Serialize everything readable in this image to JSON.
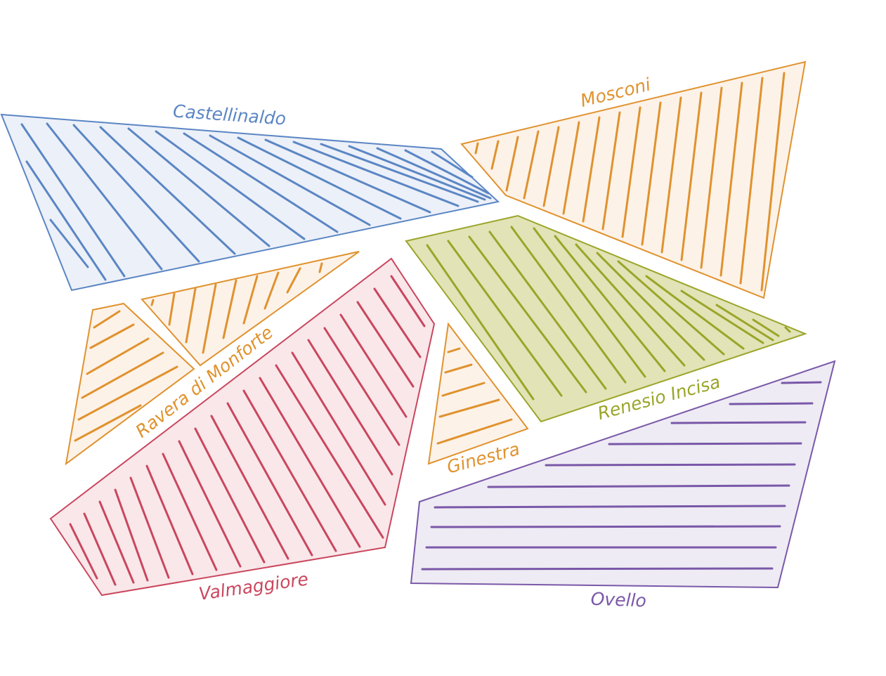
{
  "map": {
    "regions": [
      {
        "id": "castellinaldo",
        "name": "Castellinaldo",
        "stroke": "#5b86c4",
        "fill": "#ecf0f8"
      },
      {
        "id": "mosconi",
        "name": "Mosconi",
        "stroke": "#e0922e",
        "fill": "#fcf2e8"
      },
      {
        "id": "ravera-di-monforte",
        "name": "Ravera di Monforte",
        "stroke": "#e0922e",
        "fill": "#fcf2e8"
      },
      {
        "id": "renesio-incisa",
        "name": "Renesio Incisa",
        "stroke": "#9aa52a",
        "fill": "#e2e3b6"
      },
      {
        "id": "valmaggiore",
        "name": "Valmaggiore",
        "stroke": "#c9475e",
        "fill": "#f9e7ea"
      },
      {
        "id": "ginestra",
        "name": "Ginestra",
        "stroke": "#e0922e",
        "fill": "#fcf2e8"
      },
      {
        "id": "ovello",
        "name": "Ovello",
        "stroke": "#7a58a8",
        "fill": "#eeebf4"
      }
    ]
  }
}
